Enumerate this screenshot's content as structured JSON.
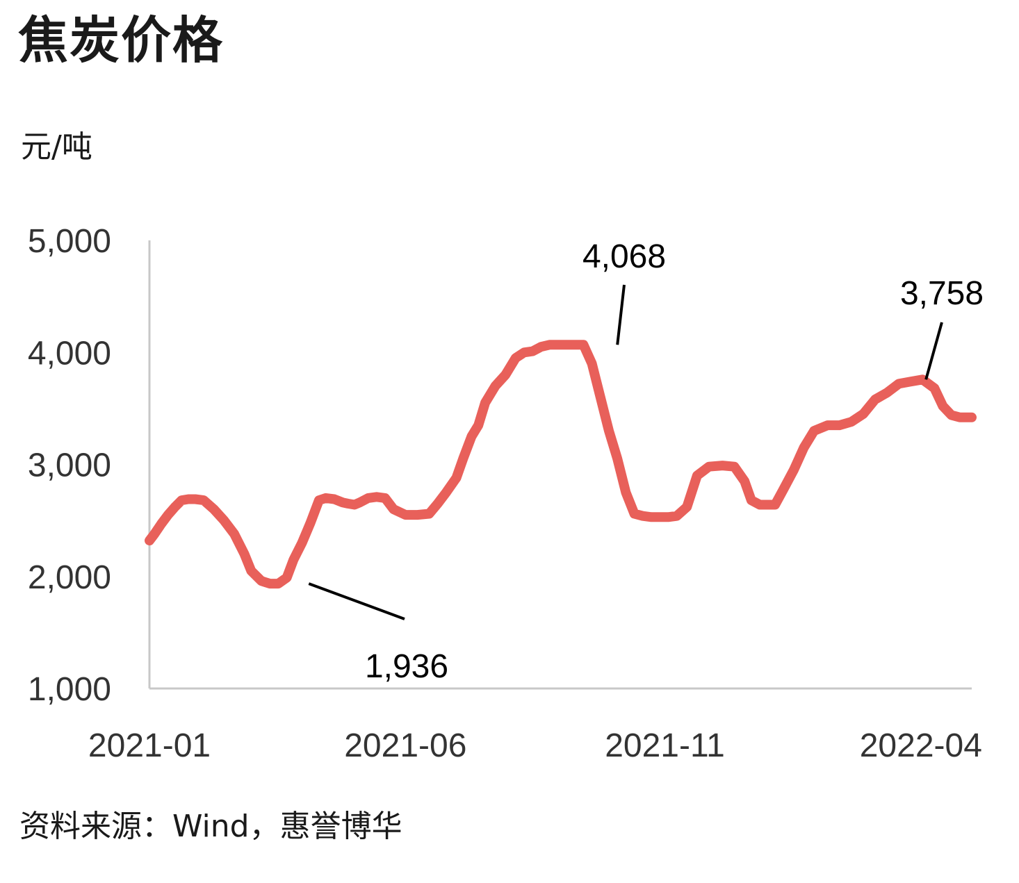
{
  "title": "焦炭价格",
  "unit": "元/吨",
  "source": "资料来源：Wind，惠誉博华",
  "chart_data": {
    "type": "line",
    "title": "焦炭价格",
    "ylabel": "元/吨",
    "ylim": [
      1000,
      5000
    ],
    "yticks": [
      1000,
      2000,
      3000,
      4000,
      5000
    ],
    "ytick_labels": [
      "1,000",
      "2,000",
      "3,000",
      "4,000",
      "5,000"
    ],
    "x_range": [
      "2021-01-01",
      "2022-05-01"
    ],
    "xticks": [
      "2021-01-01",
      "2021-06-01",
      "2021-11-01",
      "2022-04-01"
    ],
    "xtick_labels": [
      "2021-01",
      "2021-06",
      "2021-11",
      "2022-04"
    ],
    "grid": false,
    "line_color": "#e8605a",
    "series": [
      {
        "x": [
          "2021-01-01",
          "2021-01-04",
          "2021-01-08",
          "2021-01-12",
          "2021-01-16",
          "2021-01-20",
          "2021-01-24",
          "2021-01-28",
          "2021-02-02",
          "2021-02-08",
          "2021-02-14",
          "2021-02-20",
          "2021-02-26",
          "2021-03-02",
          "2021-03-08",
          "2021-03-13",
          "2021-03-18",
          "2021-03-23",
          "2021-03-27",
          "2021-04-01",
          "2021-04-06",
          "2021-04-11",
          "2021-04-15",
          "2021-04-20",
          "2021-04-25",
          "2021-04-28",
          "2021-05-02",
          "2021-05-05",
          "2021-05-10",
          "2021-05-15",
          "2021-05-20",
          "2021-05-25",
          "2021-06-01",
          "2021-06-08",
          "2021-06-15",
          "2021-06-20",
          "2021-06-25",
          "2021-07-01",
          "2021-07-05",
          "2021-07-10",
          "2021-07-14",
          "2021-07-18",
          "2021-07-24",
          "2021-07-30",
          "2021-08-05",
          "2021-08-10",
          "2021-08-15",
          "2021-08-20",
          "2021-08-25",
          "2021-08-30",
          "2021-09-04",
          "2021-09-09",
          "2021-09-14",
          "2021-09-19",
          "2021-09-24",
          "2021-09-29",
          "2021-10-04",
          "2021-10-09",
          "2021-10-14",
          "2021-10-19",
          "2021-10-24",
          "2021-10-29",
          "2021-11-03",
          "2021-11-08",
          "2021-11-14",
          "2021-11-20",
          "2021-11-27",
          "2021-12-05",
          "2021-12-12",
          "2021-12-18",
          "2021-12-22",
          "2021-12-27",
          "2022-01-05",
          "2022-01-10",
          "2022-01-16",
          "2022-01-22",
          "2022-01-28",
          "2022-02-05",
          "2022-02-12",
          "2022-02-19",
          "2022-02-26",
          "2022-03-05",
          "2022-03-12",
          "2022-03-19",
          "2022-03-26",
          "2022-04-02",
          "2022-04-09",
          "2022-04-14",
          "2022-04-19",
          "2022-04-24",
          "2022-05-01"
        ],
        "values": [
          2320,
          2380,
          2470,
          2550,
          2620,
          2680,
          2690,
          2690,
          2680,
          2600,
          2500,
          2380,
          2200,
          2050,
          1960,
          1936,
          1936,
          1990,
          2150,
          2300,
          2480,
          2680,
          2700,
          2690,
          2660,
          2650,
          2640,
          2660,
          2700,
          2710,
          2700,
          2600,
          2550,
          2550,
          2560,
          2650,
          2750,
          2880,
          3050,
          3250,
          3350,
          3550,
          3700,
          3800,
          3950,
          4000,
          4010,
          4050,
          4068,
          4068,
          4068,
          4068,
          4068,
          3900,
          3600,
          3300,
          3050,
          2750,
          2560,
          2540,
          2530,
          2530,
          2530,
          2540,
          2620,
          2900,
          2980,
          2990,
          2980,
          2850,
          2680,
          2640,
          2640,
          2780,
          2950,
          3150,
          3300,
          3350,
          3350,
          3380,
          3450,
          3580,
          3640,
          3720,
          3740,
          3758,
          3680,
          3520,
          3440,
          3420,
          3420
        ]
      }
    ],
    "annotations": [
      {
        "text": "1,936",
        "x": "2021-04-05",
        "y": 1936
      },
      {
        "text": "4,068",
        "x": "2021-10-04",
        "y": 4068
      },
      {
        "text": "3,758",
        "x": "2022-04-04",
        "y": 3758
      }
    ]
  }
}
